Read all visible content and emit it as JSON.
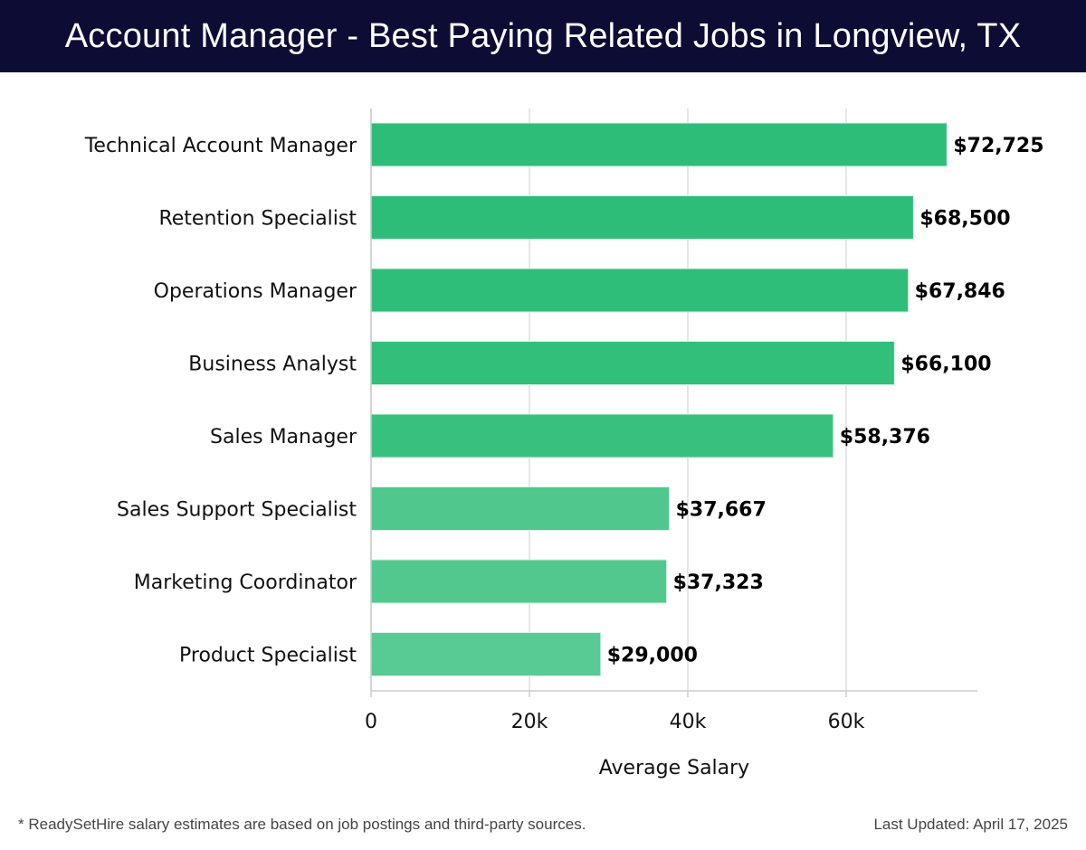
{
  "header": {
    "title": "Account Manager - Best Paying Related Jobs in Longview, TX"
  },
  "footer": {
    "note": "* ReadySetHire salary estimates are based on job postings and third-party sources.",
    "updated": "Last Updated: April 17, 2025"
  },
  "chart_data": {
    "type": "bar",
    "orientation": "horizontal",
    "title": "Account Manager - Best Paying Related Jobs in Longview, TX",
    "xlabel": "Average Salary",
    "ylabel": "",
    "xlim": [
      0,
      76500
    ],
    "grid": true,
    "legend": "none",
    "x_ticks": [
      0,
      20000,
      40000,
      60000
    ],
    "x_tick_labels": [
      "0",
      "20k",
      "40k",
      "60k"
    ],
    "categories": [
      "Technical Account Manager",
      "Retention Specialist",
      "Operations Manager",
      "Business Analyst",
      "Sales Manager",
      "Sales Support Specialist",
      "Marketing Coordinator",
      "Product Specialist"
    ],
    "values": [
      72725,
      68500,
      67846,
      66100,
      58376,
      37667,
      37323,
      29000
    ],
    "value_labels": [
      "$72,725",
      "$68,500",
      "$67,846",
      "$66,100",
      "$58,376",
      "$37,667",
      "$37,323",
      "$29,000"
    ],
    "colors": [
      "#2dbd78",
      "#2ebd78",
      "#2fbe79",
      "#31bf7a",
      "#38c17e",
      "#50c78d",
      "#52c88e",
      "#58ca93"
    ]
  }
}
